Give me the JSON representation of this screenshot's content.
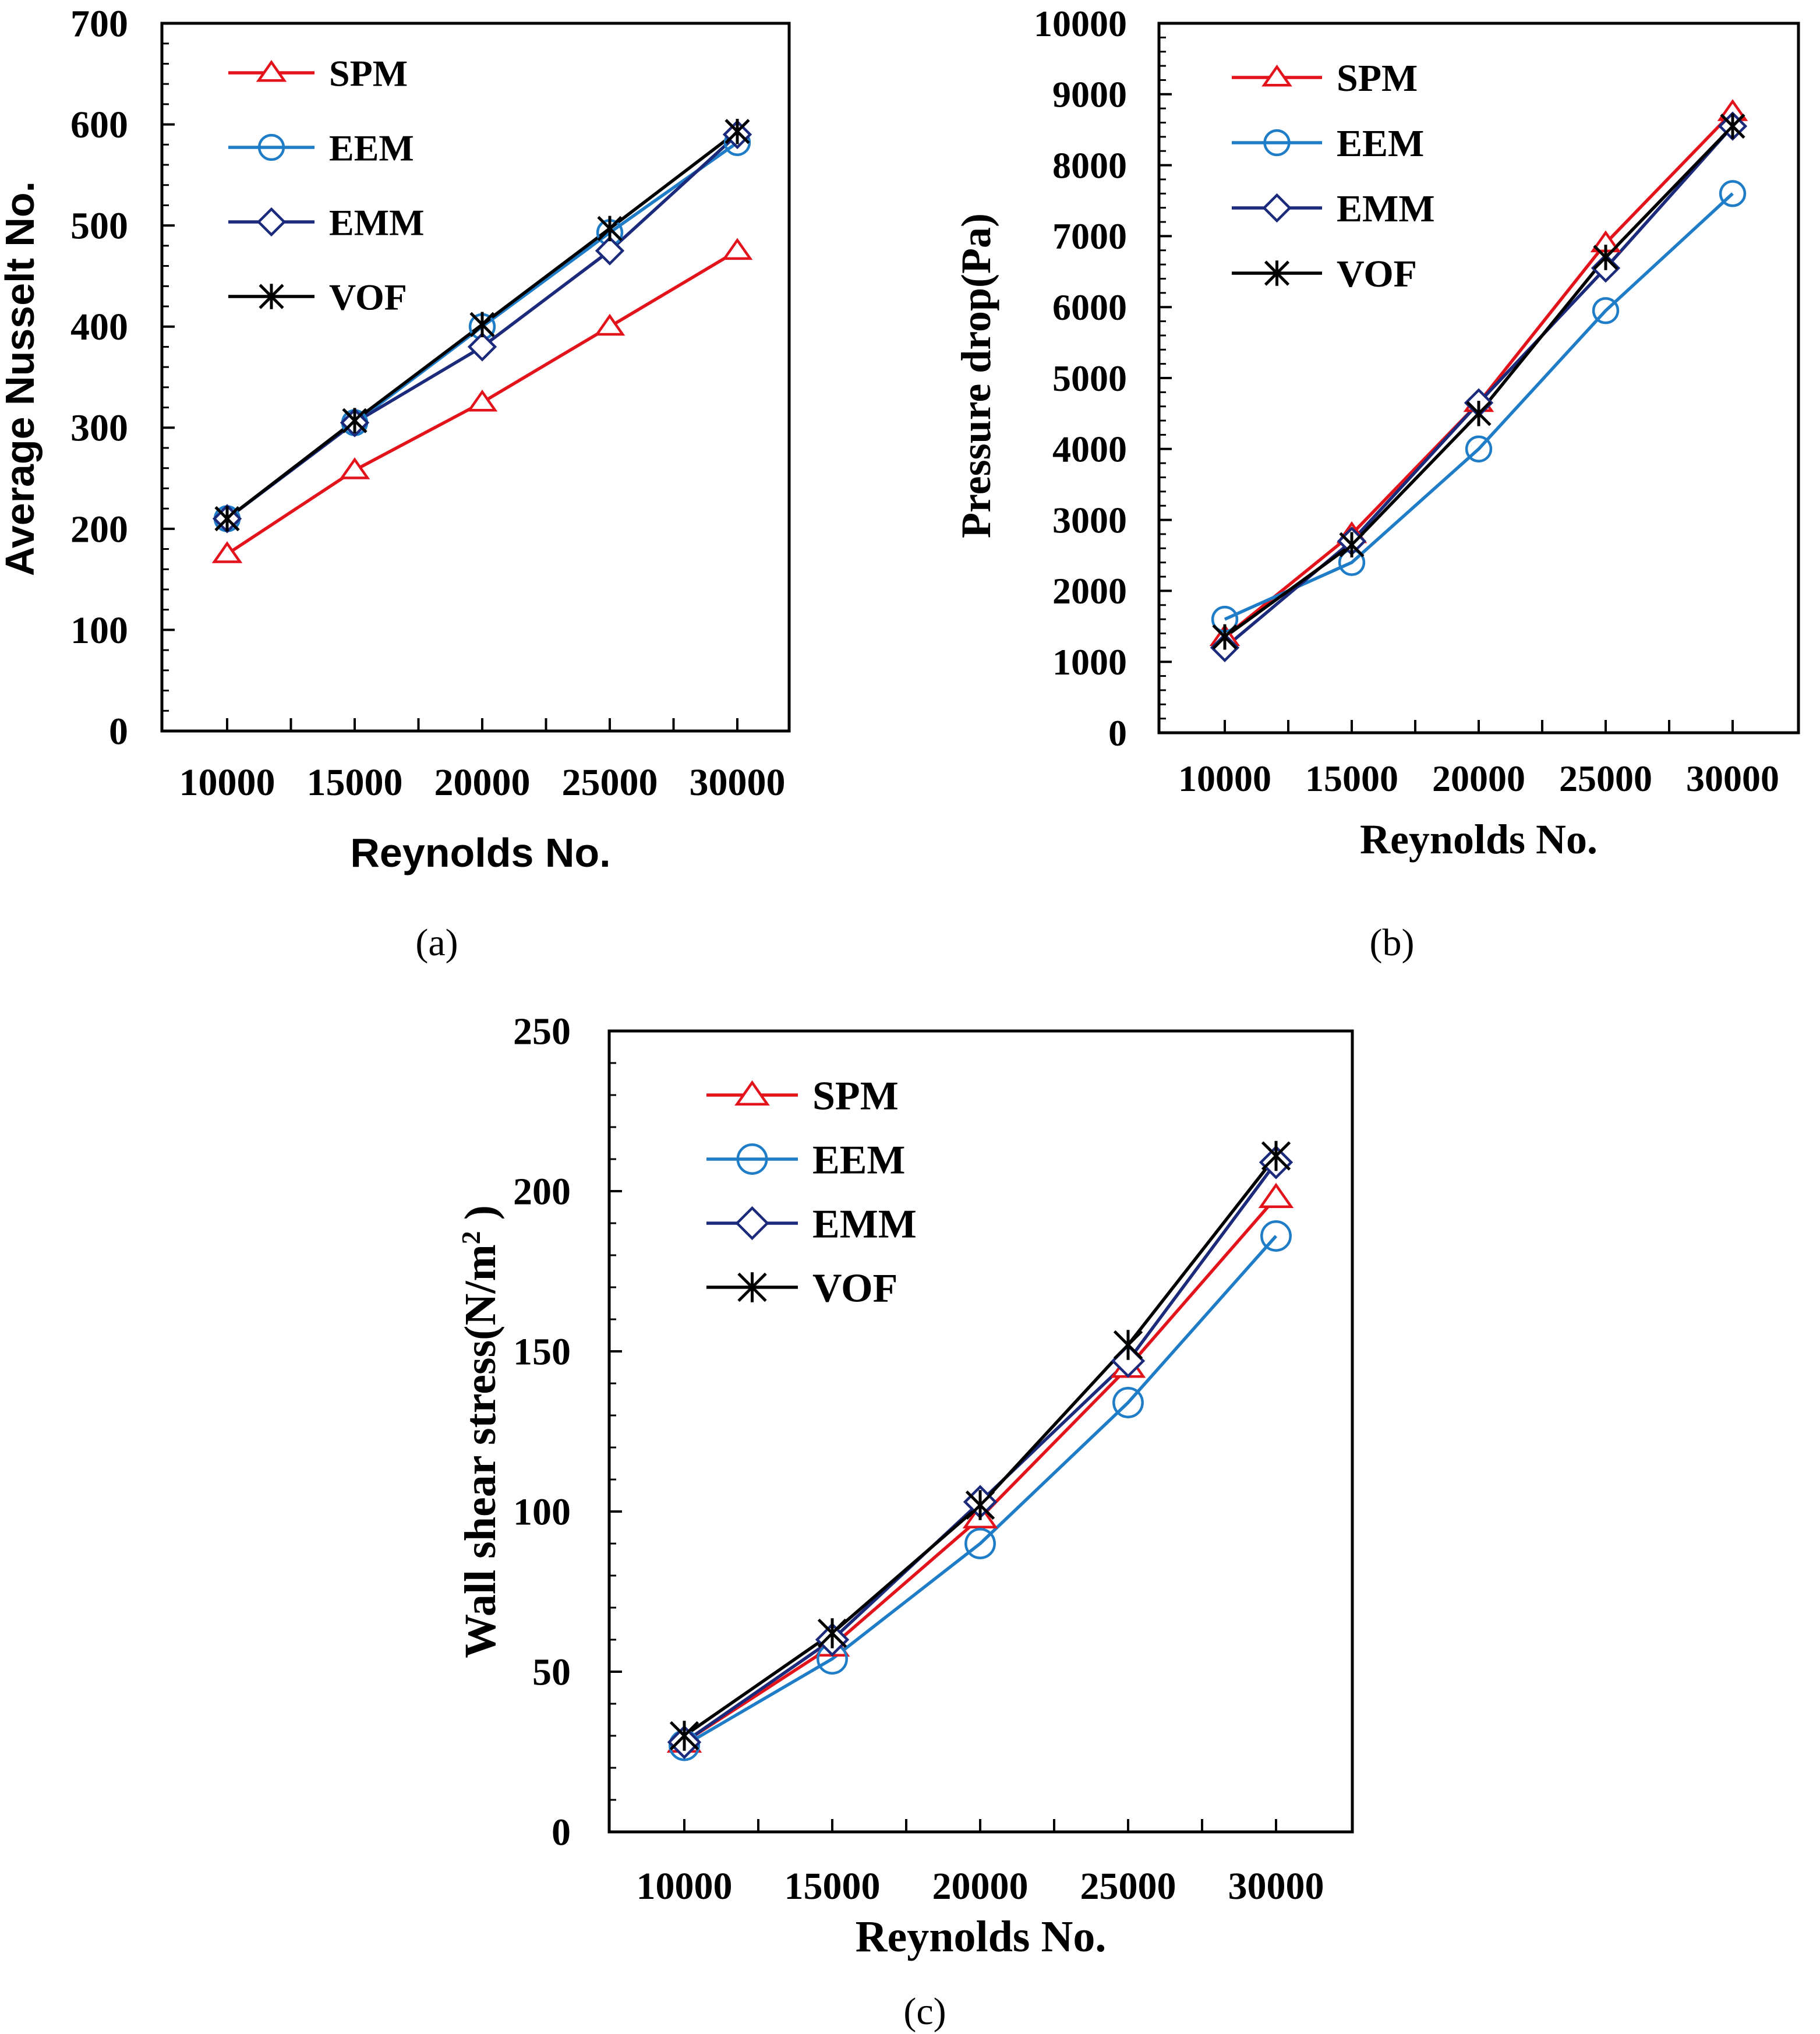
{
  "chart_data": [
    {
      "type": "line",
      "panel_label": "(a)",
      "title": "",
      "xlabel": "Reynolds No.",
      "ylabel": "Average Nusselt No.",
      "categories": [
        "10000",
        "15000",
        "20000",
        "25000",
        "30000"
      ],
      "ylim": [
        0,
        700
      ],
      "yticks": [
        "0",
        "100",
        "200",
        "300",
        "400",
        "500",
        "600",
        "700"
      ],
      "legend": "top-left",
      "grid": false,
      "series": [
        {
          "name": "SPM",
          "marker": "triangle",
          "color": "#E3131B",
          "values": [
            175,
            258,
            325,
            400,
            475
          ]
        },
        {
          "name": "EEM",
          "marker": "circle",
          "color": "#1F7CC7",
          "values": [
            210,
            305,
            400,
            493,
            582
          ]
        },
        {
          "name": "EMM",
          "marker": "diamond",
          "color": "#1B2A7A",
          "values": [
            210,
            305,
            380,
            475,
            590
          ]
        },
        {
          "name": "VOF",
          "marker": "star",
          "color": "#000000",
          "values": [
            210,
            307,
            402,
            497,
            593
          ]
        }
      ]
    },
    {
      "type": "line",
      "panel_label": "(b)",
      "title": "",
      "xlabel": "Reynolds No.",
      "ylabel": "Pressure drop(Pa)",
      "categories": [
        "10000",
        "15000",
        "20000",
        "25000",
        "30000"
      ],
      "ylim": [
        0,
        10000
      ],
      "yticks": [
        "0",
        "1000",
        "2000",
        "3000",
        "4000",
        "5000",
        "6000",
        "7000",
        "8000",
        "9000",
        "10000"
      ],
      "legend": "top-left",
      "grid": false,
      "series": [
        {
          "name": "SPM",
          "marker": "triangle",
          "color": "#E3131B",
          "values": [
            1350,
            2800,
            4650,
            6900,
            8750
          ]
        },
        {
          "name": "EEM",
          "marker": "circle",
          "color": "#1F7CC7",
          "values": [
            1600,
            2400,
            4000,
            5950,
            7600
          ]
        },
        {
          "name": "EMM",
          "marker": "diamond",
          "color": "#1B2A7A",
          "values": [
            1200,
            2700,
            4650,
            6550,
            8550
          ]
        },
        {
          "name": "VOF",
          "marker": "star",
          "color": "#000000",
          "values": [
            1350,
            2650,
            4500,
            6700,
            8550
          ]
        }
      ]
    },
    {
      "type": "line",
      "panel_label": "(c)",
      "title": "",
      "xlabel": "Reynolds No.",
      "ylabel": "Wall shear stress(N/m",
      "ylabel_superscript": "2",
      "ylabel_suffix": " )",
      "categories": [
        "10000",
        "15000",
        "20000",
        "25000",
        "30000"
      ],
      "ylim": [
        0,
        250
      ],
      "yticks": [
        "0",
        "50",
        "100",
        "150",
        "200",
        "250"
      ],
      "legend": "top-left",
      "grid": false,
      "series": [
        {
          "name": "SPM",
          "marker": "triangle",
          "color": "#E3131B",
          "values": [
            28,
            58,
            98,
            145,
            198
          ]
        },
        {
          "name": "EEM",
          "marker": "circle",
          "color": "#1F7CC7",
          "values": [
            27,
            54,
            90,
            134,
            186
          ]
        },
        {
          "name": "EMM",
          "marker": "diamond",
          "color": "#1B2A7A",
          "values": [
            28,
            60,
            103,
            147,
            209
          ]
        },
        {
          "name": "VOF",
          "marker": "star",
          "color": "#000000",
          "values": [
            30,
            62,
            102,
            152,
            211
          ]
        }
      ]
    }
  ]
}
